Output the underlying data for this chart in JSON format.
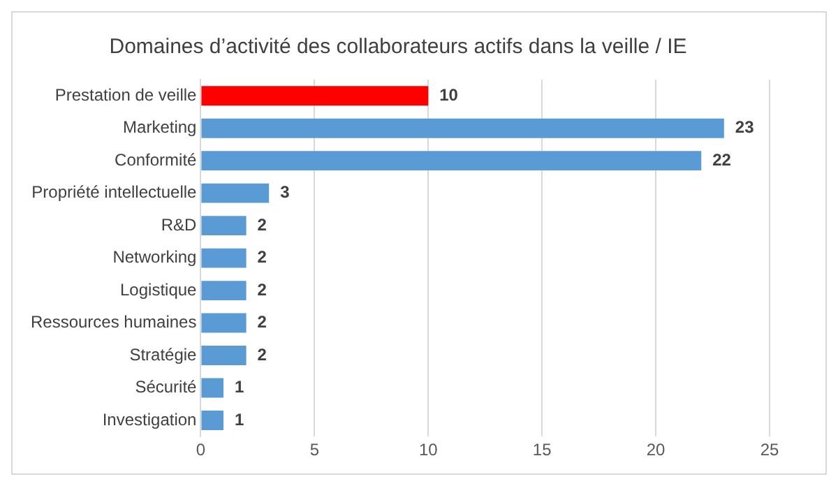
{
  "chart_data": {
    "type": "bar",
    "orientation": "horizontal",
    "title": "Domaines d’activité des collaborateurs actifs dans la veille / IE",
    "categories": [
      "Prestation de veille",
      "Marketing",
      "Conformité",
      "Propriété intellectuelle",
      "R&D",
      "Networking",
      "Logistique",
      "Ressources humaines",
      "Stratégie",
      "Sécurité",
      "Investigation"
    ],
    "values": [
      10,
      23,
      22,
      3,
      2,
      2,
      2,
      2,
      2,
      1,
      1
    ],
    "colors": [
      "#ff0000",
      "#5b9bd5",
      "#5b9bd5",
      "#5b9bd5",
      "#5b9bd5",
      "#5b9bd5",
      "#5b9bd5",
      "#5b9bd5",
      "#5b9bd5",
      "#5b9bd5",
      "#5b9bd5"
    ],
    "xlim": [
      0,
      25
    ],
    "xticks": [
      0,
      5,
      10,
      15,
      20,
      25
    ],
    "grid": "x",
    "data_labels": true,
    "legend": false
  }
}
